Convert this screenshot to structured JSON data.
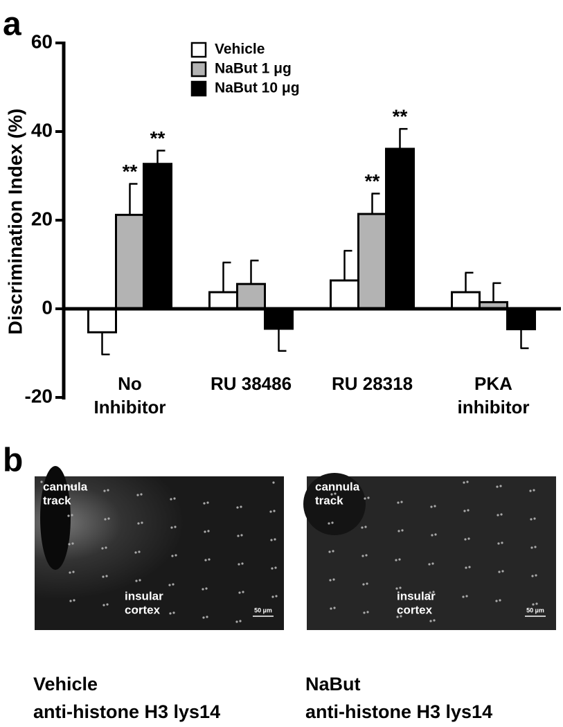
{
  "chart_data": {
    "type": "bar",
    "panel_label": "a",
    "ylabel": "Discrimination Index (%)",
    "categories": [
      [
        "No",
        "Inhibitor"
      ],
      [
        "RU 38486"
      ],
      [
        "RU 28318"
      ],
      [
        "PKA",
        "inhibitor"
      ]
    ],
    "series": [
      {
        "name": "Vehicle",
        "color": "#ffffff",
        "values": [
          -5.3,
          3.75,
          6.4,
          3.75
        ],
        "errors": [
          5,
          6.7,
          6.7,
          4.4
        ],
        "significance": [
          null,
          null,
          null,
          null
        ]
      },
      {
        "name": "NaBut 1 μg",
        "color": "#b3b3b3",
        "values": [
          21.2,
          5.6,
          21.4,
          1.5
        ],
        "errors": [
          7,
          5.3,
          4.6,
          4.3
        ],
        "significance": [
          "**",
          null,
          "**",
          null
        ]
      },
      {
        "name": "NaBut 10 μg",
        "color": "#000000",
        "values": [
          32.7,
          -4.5,
          36.1,
          -4.6
        ],
        "errors": [
          3,
          5,
          4.5,
          4.3
        ],
        "significance": [
          "**",
          null,
          "**",
          null
        ]
      }
    ],
    "ylim": [
      -20,
      60
    ],
    "yticks": [
      -20,
      0,
      20,
      40,
      60
    ],
    "legend": "top-center"
  },
  "panel_b": {
    "panel_label": "b",
    "images": [
      {
        "labels": [
          [
            "cannula",
            "track"
          ],
          [
            "insular",
            "cortex"
          ]
        ],
        "scale_bar": "50 µm",
        "caption": [
          "Vehicle",
          "anti-histone H3 lys14"
        ]
      },
      {
        "labels": [
          [
            "cannula",
            "track"
          ],
          [
            "insular",
            "cortex"
          ]
        ],
        "scale_bar": "50 µm",
        "caption": [
          "NaBut",
          "anti-histone H3 lys14"
        ]
      }
    ]
  }
}
